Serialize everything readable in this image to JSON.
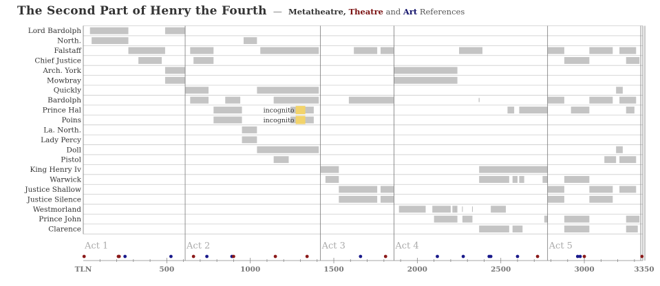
{
  "title": {
    "main": "The Second Part of Henry the Fourth",
    "dash": "—",
    "metatheatre": "Metatheatre,",
    "theatre": "Theatre",
    "and": "and",
    "art": "Art",
    "references": "References"
  },
  "colors": {
    "bar": "#c4c4c4",
    "incognito": "#f2d36b",
    "grid": "#cccccc",
    "act_line": "#777777",
    "theatre": "#8b1a1a",
    "art": "#1a1a8b",
    "text": "#333333"
  },
  "chart_data": {
    "type": "timeline",
    "x_axis": {
      "label_start": "TLN",
      "range": [
        0,
        3350
      ],
      "ticks": [
        500,
        1000,
        1500,
        2000,
        2500,
        3000
      ],
      "end_label": "3350"
    },
    "acts": [
      {
        "label": "Act 1",
        "start": 0
      },
      {
        "label": "Act 2",
        "start": 610
      },
      {
        "label": "Act 3",
        "start": 1420
      },
      {
        "label": "Act 4",
        "start": 1860
      },
      {
        "label": "Act 5",
        "start": 2780
      }
    ],
    "characters": [
      {
        "name": "Lord Bardolph",
        "spans": [
          [
            40,
            270
          ],
          [
            490,
            610
          ]
        ]
      },
      {
        "name": "North.",
        "spans": [
          [
            50,
            270
          ],
          [
            960,
            1040
          ]
        ]
      },
      {
        "name": "Falstaff",
        "spans": [
          [
            270,
            490
          ],
          [
            640,
            780
          ],
          [
            1060,
            1410
          ],
          [
            1620,
            1760
          ],
          [
            1780,
            1860
          ],
          [
            2250,
            2390
          ],
          [
            2780,
            2880
          ],
          [
            3030,
            3170
          ],
          [
            3210,
            3310
          ]
        ]
      },
      {
        "name": "Chief Justice",
        "spans": [
          [
            330,
            470
          ],
          [
            660,
            780
          ],
          [
            2880,
            3030
          ],
          [
            3250,
            3330
          ]
        ]
      },
      {
        "name": "Arch. York",
        "spans": [
          [
            490,
            610
          ],
          [
            1860,
            2240
          ]
        ]
      },
      {
        "name": "Mowbray",
        "spans": [
          [
            490,
            610
          ],
          [
            1860,
            2240
          ]
        ]
      },
      {
        "name": "Quickly",
        "spans": [
          [
            610,
            750
          ],
          [
            1040,
            1410
          ],
          [
            3190,
            3230
          ]
        ]
      },
      {
        "name": "Bardolph",
        "spans": [
          [
            640,
            750
          ],
          [
            850,
            940
          ],
          [
            1140,
            1410
          ],
          [
            1590,
            1860
          ],
          [
            2780,
            2880
          ],
          [
            3030,
            3170
          ],
          [
            3210,
            3310
          ]
        ]
      },
      {
        "name": "Prince Hal",
        "spans": [
          [
            780,
            950
          ],
          [
            1240,
            1380
          ],
          [
            2540,
            2580
          ],
          [
            2610,
            2780
          ],
          [
            2920,
            3030
          ],
          [
            3250,
            3300
          ]
        ]
      },
      {
        "name": "Poins",
        "spans": [
          [
            780,
            950
          ],
          [
            1240,
            1380
          ]
        ]
      },
      {
        "name": "La. North.",
        "spans": [
          [
            950,
            1040
          ]
        ]
      },
      {
        "name": "Lady Percy",
        "spans": [
          [
            950,
            1040
          ]
        ]
      },
      {
        "name": "Doll",
        "spans": [
          [
            1040,
            1410
          ],
          [
            3190,
            3230
          ]
        ]
      },
      {
        "name": "Pistol",
        "spans": [
          [
            1140,
            1230
          ],
          [
            3120,
            3190
          ],
          [
            3210,
            3310
          ]
        ]
      },
      {
        "name": "King Henry Iv",
        "spans": [
          [
            1420,
            1530
          ],
          [
            2370,
            2780
          ]
        ]
      },
      {
        "name": "Warwick",
        "spans": [
          [
            1450,
            1530
          ],
          [
            2370,
            2550
          ],
          [
            2570,
            2600
          ],
          [
            2610,
            2640
          ],
          [
            2750,
            2780
          ],
          [
            2880,
            3030
          ]
        ]
      },
      {
        "name": "Justice Shallow",
        "spans": [
          [
            1530,
            1760
          ],
          [
            1780,
            1860
          ],
          [
            2780,
            2880
          ],
          [
            3030,
            3170
          ],
          [
            3210,
            3310
          ]
        ]
      },
      {
        "name": "Justice Silence",
        "spans": [
          [
            1530,
            1760
          ],
          [
            1780,
            1860
          ],
          [
            2780,
            2880
          ],
          [
            3030,
            3170
          ]
        ]
      },
      {
        "name": "Westmorland",
        "spans": [
          [
            1890,
            2050
          ],
          [
            2090,
            2200
          ],
          [
            2210,
            2240
          ],
          [
            2440,
            2530
          ]
        ]
      },
      {
        "name": "Prince John",
        "spans": [
          [
            2100,
            2240
          ],
          [
            2270,
            2330
          ],
          [
            2760,
            2780
          ],
          [
            2880,
            3030
          ],
          [
            3250,
            3330
          ]
        ]
      },
      {
        "name": "Clarence",
        "spans": [
          [
            2370,
            2550
          ],
          [
            2570,
            2630
          ],
          [
            2880,
            3030
          ],
          [
            3250,
            3320
          ]
        ]
      }
    ],
    "ticks_small": [
      2370,
      2440,
      2610
    ],
    "incognito": [
      {
        "label": "incognito",
        "row": "Prince Hal",
        "at": 1280
      },
      {
        "label": "incognito",
        "row": "Poins",
        "at": 1280
      }
    ],
    "references": [
      {
        "tln": 5,
        "kind": "theatre"
      },
      {
        "tln": 210,
        "kind": "theatre"
      },
      {
        "tln": 215,
        "kind": "theatre"
      },
      {
        "tln": 250,
        "kind": "art"
      },
      {
        "tln": 525,
        "kind": "art"
      },
      {
        "tln": 660,
        "kind": "theatre"
      },
      {
        "tln": 740,
        "kind": "art"
      },
      {
        "tln": 890,
        "kind": "art"
      },
      {
        "tln": 900,
        "kind": "theatre"
      },
      {
        "tln": 1150,
        "kind": "theatre"
      },
      {
        "tln": 1340,
        "kind": "theatre"
      },
      {
        "tln": 1660,
        "kind": "art"
      },
      {
        "tln": 1810,
        "kind": "theatre"
      },
      {
        "tln": 2120,
        "kind": "art"
      },
      {
        "tln": 2275,
        "kind": "art"
      },
      {
        "tln": 2430,
        "kind": "art"
      },
      {
        "tln": 2440,
        "kind": "art"
      },
      {
        "tln": 2600,
        "kind": "art"
      },
      {
        "tln": 2720,
        "kind": "theatre"
      },
      {
        "tln": 2960,
        "kind": "art"
      },
      {
        "tln": 2975,
        "kind": "art"
      },
      {
        "tln": 3000,
        "kind": "theatre"
      },
      {
        "tln": 3345,
        "kind": "theatre"
      }
    ]
  }
}
